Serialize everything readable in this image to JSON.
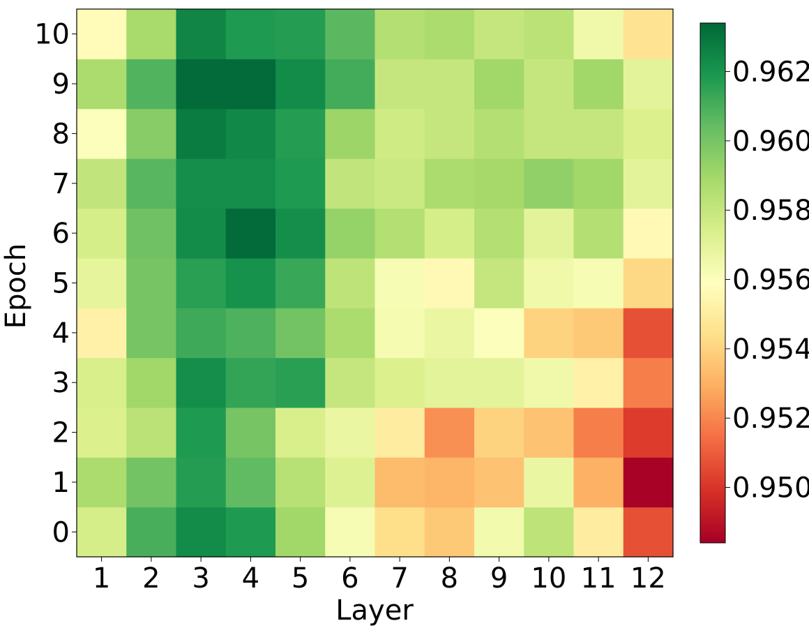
{
  "chart_data": {
    "type": "heatmap",
    "xlabel": "Layer",
    "ylabel": "Epoch",
    "x_categories": [
      "1",
      "2",
      "3",
      "4",
      "5",
      "6",
      "7",
      "8",
      "9",
      "10",
      "11",
      "12"
    ],
    "y_categories": [
      "0",
      "1",
      "2",
      "3",
      "4",
      "5",
      "6",
      "7",
      "8",
      "9",
      "10"
    ],
    "values": [
      [
        0.9575,
        0.961,
        0.9623,
        0.9618,
        0.959,
        0.9562,
        0.9544,
        0.9537,
        0.9564,
        0.9582,
        0.955,
        0.9507
      ],
      [
        0.9587,
        0.9601,
        0.9617,
        0.9605,
        0.9584,
        0.9572,
        0.9533,
        0.9531,
        0.9535,
        0.9567,
        0.953,
        0.9485
      ],
      [
        0.9573,
        0.9583,
        0.9618,
        0.96,
        0.9574,
        0.9567,
        0.955,
        0.9522,
        0.954,
        0.9535,
        0.9518,
        0.9502
      ],
      [
        0.9574,
        0.959,
        0.9622,
        0.9614,
        0.9616,
        0.958,
        0.9573,
        0.957,
        0.957,
        0.9565,
        0.9552,
        0.9518
      ],
      [
        0.9552,
        0.96,
        0.9612,
        0.9609,
        0.9601,
        0.9587,
        0.9563,
        0.9567,
        0.956,
        0.954,
        0.9537,
        0.9507
      ],
      [
        0.9569,
        0.96,
        0.9616,
        0.9621,
        0.9613,
        0.9582,
        0.9562,
        0.9556,
        0.958,
        0.9565,
        0.9562,
        0.9542
      ],
      [
        0.9575,
        0.9602,
        0.9623,
        0.9633,
        0.9622,
        0.9593,
        0.9585,
        0.9575,
        0.9585,
        0.957,
        0.9585,
        0.9556
      ],
      [
        0.9581,
        0.9607,
        0.9622,
        0.9622,
        0.9618,
        0.9581,
        0.9578,
        0.9587,
        0.9589,
        0.9594,
        0.959,
        0.957
      ],
      [
        0.956,
        0.9596,
        0.9628,
        0.9624,
        0.9617,
        0.9591,
        0.9577,
        0.958,
        0.9585,
        0.958,
        0.958,
        0.9573
      ],
      [
        0.9587,
        0.9608,
        0.9633,
        0.9633,
        0.9623,
        0.9611,
        0.958,
        0.958,
        0.959,
        0.958,
        0.959,
        0.957
      ],
      [
        0.9557,
        0.9588,
        0.9625,
        0.9618,
        0.9617,
        0.9606,
        0.9585,
        0.9587,
        0.958,
        0.9583,
        0.9565,
        0.9546
      ]
    ],
    "colorbar": {
      "colormap": "RdYlGn",
      "vmin": 0.9484,
      "vmax": 0.9634,
      "ticks": [
        "0.950",
        "0.952",
        "0.954",
        "0.956",
        "0.958",
        "0.960",
        "0.962"
      ],
      "tick_values": [
        0.95,
        0.952,
        0.954,
        0.956,
        0.958,
        0.96,
        0.962
      ]
    },
    "grid": false
  }
}
